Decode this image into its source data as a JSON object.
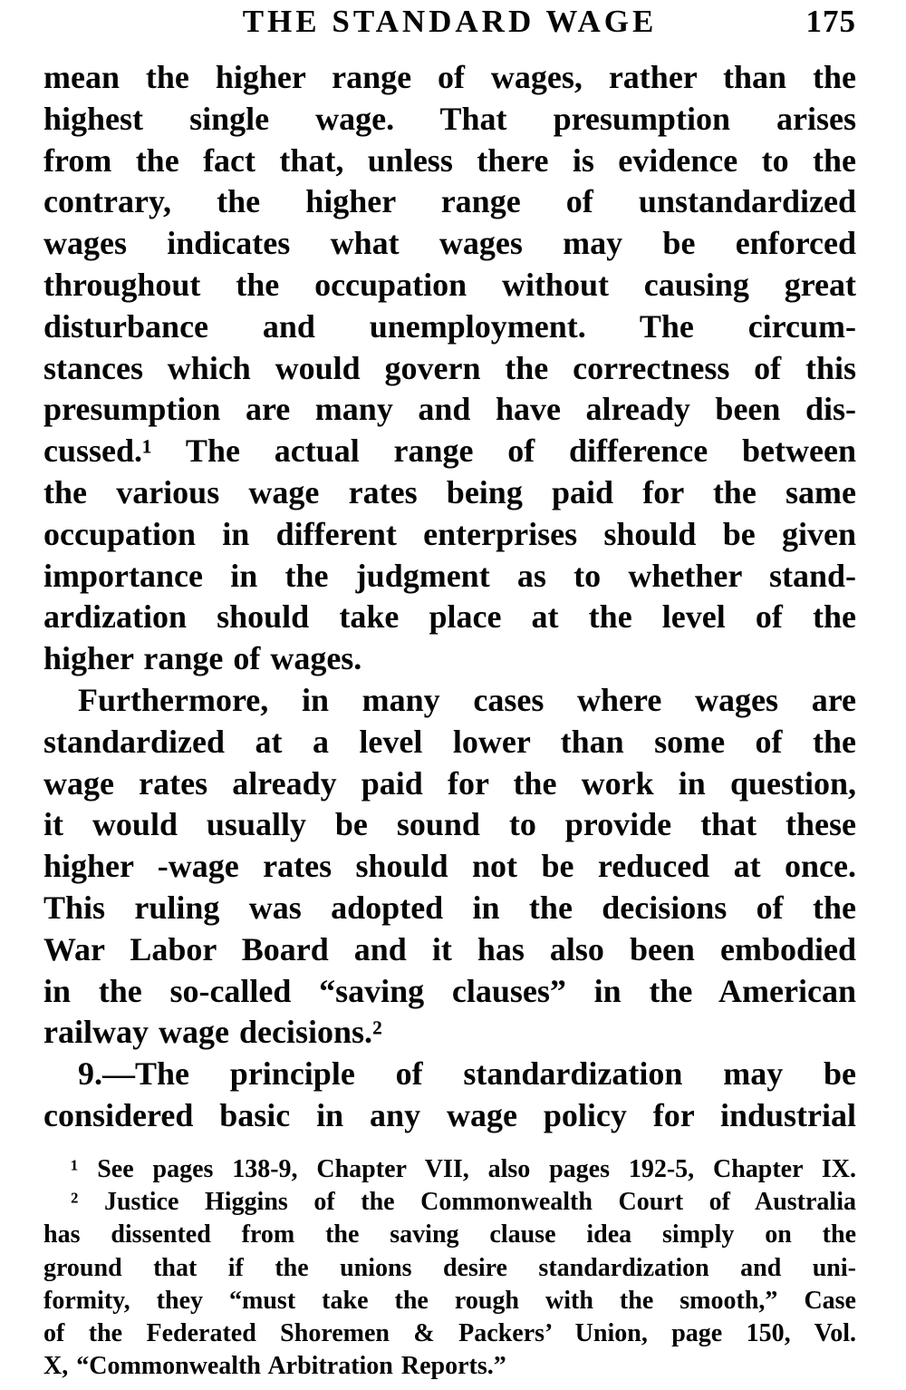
{
  "header": {
    "title": "THE STANDARD WAGE",
    "page_number": "175"
  },
  "body": {
    "lines": [
      {
        "t": "mean the higher range of wages, rather than the"
      },
      {
        "t": "highest single wage. That presumption arises"
      },
      {
        "t": "from the fact that, unless there is evidence to the"
      },
      {
        "t": "contrary, the higher range of unstandardized"
      },
      {
        "t": "wages indicates what wages may be enforced"
      },
      {
        "t": "throughout the occupation without causing great"
      },
      {
        "t": "disturbance and unemployment. The circum-"
      },
      {
        "t": "stances which would govern the correctness of this"
      },
      {
        "t": "presumption are many and have already been dis-"
      },
      {
        "t": "cussed.¹ The actual range of difference between"
      },
      {
        "t": "the various wage rates being paid for the same"
      },
      {
        "t": "occupation in different enterprises should be given"
      },
      {
        "t": "importance in the judgment as to whether stand-"
      },
      {
        "t": "ardization should take place at the level of the"
      },
      {
        "t": "higher range of wages.",
        "end": true
      },
      {
        "t": "Furthermore, in many cases where wages are",
        "indent": true
      },
      {
        "t": "standardized at a level lower than some of the"
      },
      {
        "t": "wage rates already paid for the work in question,"
      },
      {
        "t": "it would usually be sound to provide that these"
      },
      {
        "t": "higher -wage rates should not be reduced at once."
      },
      {
        "t": "This ruling was adopted in the decisions of the"
      },
      {
        "t": "War Labor Board and it has also been embodied"
      },
      {
        "t": "in the so-called “saving clauses” in the American"
      },
      {
        "t": "railway wage decisions.²",
        "end": true
      },
      {
        "t": "9.—The principle of standardization may be",
        "indent": true
      },
      {
        "t": "considered basic in any wage policy for industrial"
      }
    ]
  },
  "footnotes": {
    "lines": [
      {
        "t": "¹ See pages 138-9, Chapter VII, also pages 192-5, Chapter IX.",
        "indent": true
      },
      {
        "t": "² Justice Higgins of the Commonwealth Court of Australia",
        "indent": true
      },
      {
        "t": "has dissented from the saving clause idea simply on the"
      },
      {
        "t": "ground that if the unions desire standardization and uni-"
      },
      {
        "t": "formity, they “must take the rough with the smooth,” Case"
      },
      {
        "t": "of the Federated Shoremen & Packers’ Union, page 150, Vol."
      },
      {
        "t": "X, “Commonwealth Arbitration Reports.”",
        "end": true
      }
    ]
  }
}
